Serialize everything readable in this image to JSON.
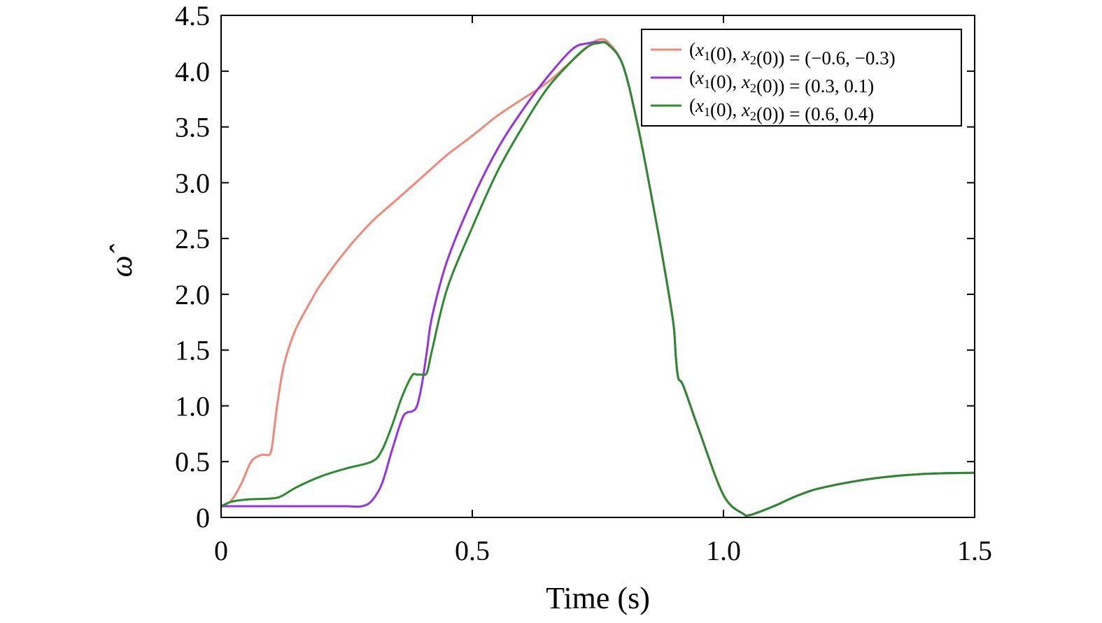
{
  "chart_data": {
    "type": "line",
    "xlabel": "Time (s)",
    "ylabel": "ω̂",
    "xlim": [
      0,
      1.5
    ],
    "ylim": [
      0,
      4.5
    ],
    "xticks": [
      0,
      0.5,
      1.0,
      1.5
    ],
    "xtick_labels": [
      "0",
      "0.5",
      "1.0",
      "1.5"
    ],
    "yticks": [
      0,
      0.5,
      1.0,
      1.5,
      2.0,
      2.5,
      3.0,
      3.5,
      4.0,
      4.5
    ],
    "ytick_labels": [
      "0",
      "0.5",
      "1.0",
      "1.5",
      "2.0",
      "2.5",
      "3.0",
      "3.5",
      "4.0",
      "4.5"
    ],
    "grid": false,
    "legend_position": "top-right",
    "series": [
      {
        "name": "(x1(0), x2(0)) = (−0.6, −0.3)",
        "legend": {
          "prefix": "(",
          "v1": "x",
          "s1": "1",
          "mid": "(0), ",
          "v2": "x",
          "s2": "2",
          "suffix": "(0)) = (−0.6, −0.3)"
        },
        "color": "#f08878",
        "x": [
          0,
          0.02,
          0.04,
          0.06,
          0.08,
          0.09,
          0.1,
          0.11,
          0.12,
          0.13,
          0.15,
          0.18,
          0.2,
          0.25,
          0.3,
          0.35,
          0.4,
          0.45,
          0.5,
          0.55,
          0.6,
          0.65,
          0.7,
          0.73,
          0.75,
          0.77,
          0.8,
          0.83,
          0.86,
          0.88,
          0.9,
          0.905,
          0.91,
          0.92,
          0.95,
          1.0,
          1.04,
          1.05,
          1.06,
          1.1,
          1.15,
          1.2,
          1.3,
          1.4,
          1.5
        ],
        "y": [
          0.1,
          0.15,
          0.3,
          0.5,
          0.56,
          0.56,
          0.6,
          0.95,
          1.25,
          1.45,
          1.7,
          1.95,
          2.1,
          2.4,
          2.65,
          2.85,
          3.05,
          3.25,
          3.42,
          3.6,
          3.75,
          3.9,
          4.1,
          4.22,
          4.28,
          4.26,
          4.05,
          3.5,
          2.8,
          2.3,
          1.75,
          1.45,
          1.25,
          1.18,
          0.8,
          0.2,
          0.03,
          0.02,
          0.03,
          0.1,
          0.2,
          0.27,
          0.35,
          0.39,
          0.4
        ]
      },
      {
        "name": "(x1(0), x2(0)) = (0.3, 0.1)",
        "legend": {
          "prefix": "(",
          "v1": "x",
          "s1": "1",
          "mid": "(0), ",
          "v2": "x",
          "s2": "2",
          "suffix": "(0)) = (0.3, 0.1)"
        },
        "color": "#9632e0",
        "x": [
          0,
          0.05,
          0.1,
          0.15,
          0.2,
          0.25,
          0.28,
          0.3,
          0.32,
          0.34,
          0.36,
          0.37,
          0.38,
          0.39,
          0.4,
          0.41,
          0.42,
          0.45,
          0.5,
          0.55,
          0.6,
          0.65,
          0.7,
          0.73,
          0.75,
          0.77,
          0.8,
          0.83,
          0.86,
          0.88,
          0.9,
          0.905,
          0.91,
          0.92,
          0.95,
          1.0,
          1.04,
          1.05,
          1.06,
          1.1,
          1.15,
          1.2,
          1.3,
          1.4,
          1.5
        ],
        "y": [
          0.1,
          0.1,
          0.1,
          0.1,
          0.1,
          0.1,
          0.1,
          0.15,
          0.3,
          0.6,
          0.88,
          0.94,
          0.95,
          1.0,
          1.2,
          1.5,
          1.8,
          2.3,
          2.85,
          3.3,
          3.65,
          3.95,
          4.2,
          4.25,
          4.26,
          4.24,
          4.05,
          3.5,
          2.8,
          2.3,
          1.75,
          1.45,
          1.25,
          1.18,
          0.8,
          0.2,
          0.03,
          0.02,
          0.03,
          0.1,
          0.2,
          0.27,
          0.35,
          0.39,
          0.4
        ]
      },
      {
        "name": "(x1(0), x2(0)) = (0.6, 0.4)",
        "legend": {
          "prefix": "(",
          "v1": "x",
          "s1": "1",
          "mid": "(0), ",
          "v2": "x",
          "s2": "2",
          "suffix": "(0)) = (0.6, 0.4)"
        },
        "color": "#2e8a2e",
        "x": [
          0,
          0.02,
          0.05,
          0.1,
          0.12,
          0.15,
          0.2,
          0.25,
          0.3,
          0.32,
          0.34,
          0.36,
          0.38,
          0.39,
          0.4,
          0.41,
          0.42,
          0.45,
          0.5,
          0.55,
          0.6,
          0.65,
          0.7,
          0.73,
          0.75,
          0.77,
          0.8,
          0.83,
          0.86,
          0.88,
          0.9,
          0.905,
          0.91,
          0.92,
          0.95,
          1.0,
          1.04,
          1.05,
          1.06,
          1.1,
          1.15,
          1.2,
          1.3,
          1.4,
          1.5
        ],
        "y": [
          0.1,
          0.14,
          0.16,
          0.17,
          0.19,
          0.27,
          0.37,
          0.44,
          0.5,
          0.6,
          0.82,
          1.08,
          1.27,
          1.28,
          1.28,
          1.3,
          1.5,
          2.05,
          2.6,
          3.1,
          3.5,
          3.85,
          4.1,
          4.22,
          4.25,
          4.24,
          4.05,
          3.5,
          2.8,
          2.3,
          1.75,
          1.45,
          1.25,
          1.18,
          0.8,
          0.2,
          0.03,
          0.02,
          0.03,
          0.1,
          0.2,
          0.27,
          0.35,
          0.39,
          0.4
        ]
      }
    ]
  }
}
